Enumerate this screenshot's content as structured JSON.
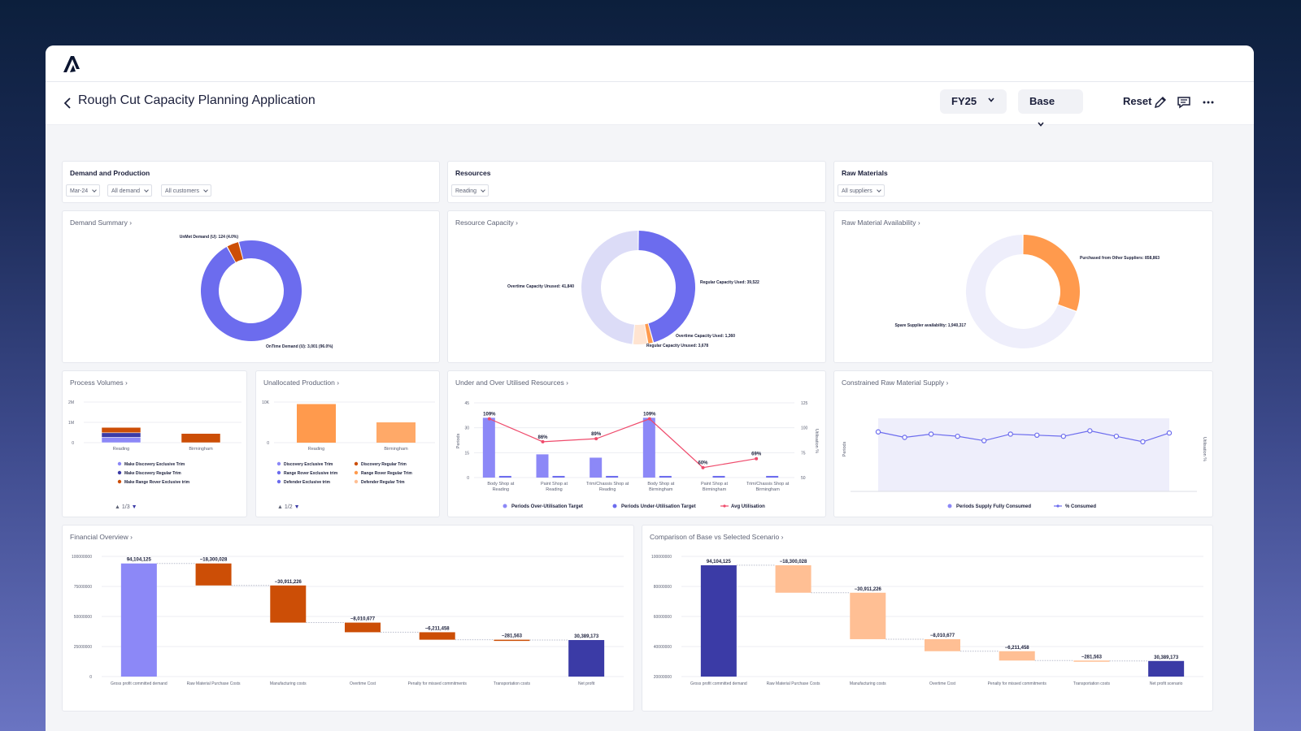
{
  "header": {
    "title": "Rough Cut Capacity Planning Application",
    "fy_label": "FY25",
    "scenario_label": "Base",
    "reset_label": "Reset",
    "icons": [
      "chevron-left-icon",
      "pencil-icon",
      "comment-icon",
      "more-horizontal-icon"
    ]
  },
  "filters": {
    "demand": {
      "title": "Demand and Production",
      "chips": [
        "Mar-24",
        "All demand",
        "All customers"
      ]
    },
    "resources": {
      "title": "Resources",
      "chips": [
        "Reading"
      ]
    },
    "raw": {
      "title": "Raw Materials",
      "chips": [
        "All suppliers"
      ]
    }
  },
  "demand_summary": {
    "title": "Demand Summary"
  },
  "resource_capacity": {
    "title": "Resource Capacity"
  },
  "raw_availability": {
    "title": "Raw Material Availability"
  },
  "process_volumes": {
    "title": "Process Volumes",
    "pager": "1/3"
  },
  "unallocated": {
    "title": "Unallocated Production",
    "pager": "1/2"
  },
  "utilised": {
    "title": "Under and Over Utilised Resources"
  },
  "constrained": {
    "title": "Constrained Raw Material Supply"
  },
  "financial": {
    "title": "Financial Overview"
  },
  "comparison": {
    "title": "Comparison of Base vs Selected Scenario"
  },
  "colors": {
    "violet": "#6c6cee",
    "light_violet": "#8c88f7",
    "lavender": "#dcdcf7",
    "navy": "#3b3ba6",
    "orange": "#ff9a4d",
    "dark_orange": "#cc4e06",
    "peach": "#ffbf94",
    "red": "#ef4b6c"
  },
  "chart_data": [
    {
      "type": "pie",
      "id": "demand_summary",
      "labels": [
        "UnMet Demand (U): 124 (4.0%)",
        "OnTime Demand (U): 3,001 (96.0%)"
      ],
      "values": [
        124,
        3001
      ],
      "colors": [
        "#cc4e06",
        "#6c6cee"
      ]
    },
    {
      "type": "pie",
      "id": "resource_capacity",
      "labels": [
        "Regular Capacity Used: 39,522",
        "Overtime Capacity Used: 1,360",
        "Regular Capacity Unused: 3,678",
        "Overtime Capacity Unused: 41,840"
      ],
      "values": [
        39522,
        1360,
        3678,
        41840
      ],
      "colors": [
        "#6c6cee",
        "#ff9a4d",
        "#ffe4d1",
        "#dcdcf7"
      ]
    },
    {
      "type": "pie",
      "id": "raw_availability",
      "labels": [
        "Purchased from Other Suppliers: 858,863",
        "Spare Supplier availability: 1,940,317"
      ],
      "values": [
        858863,
        1940317
      ],
      "colors": [
        "#ff9a4d",
        "#eeeefb"
      ]
    },
    {
      "type": "bar",
      "id": "process_volumes",
      "categories": [
        "Reading",
        "Birmingham"
      ],
      "yticks": [
        "2M",
        "1M",
        "0"
      ],
      "series": [
        {
          "name": "Make Discovery Exclusive Trim",
          "values": [
            0.35,
            0
          ],
          "color": "#8c88f7"
        },
        {
          "name": "Make Discovery Regular Trim",
          "values": [
            0.3,
            0
          ],
          "color": "#3b3ba6"
        },
        {
          "name": "Make Range Rover Exclusive trim",
          "values": [
            0.35,
            0.6
          ],
          "color": "#cc4e06"
        }
      ]
    },
    {
      "type": "bar",
      "id": "unallocated",
      "categories": [
        "Reading",
        "Birmingham"
      ],
      "yticks": [
        "10K",
        "0"
      ],
      "values": [
        9500,
        5000
      ],
      "legend": [
        "Discovery Exclusive Trim",
        "Discovery Regular Trim",
        "Range Rover Exclusive trim",
        "Range Rover Regular Trim",
        "Defender Exclusive trim",
        "Defender Regular Trim"
      ],
      "legend_colors": [
        "#8c88f7",
        "#cc4e06",
        "#6c6cee",
        "#ff9a4d",
        "#6c6cee",
        "#ffbf94"
      ]
    },
    {
      "type": "bar",
      "id": "utilised",
      "categories": [
        "Body Shop at Reading",
        "Paint Shop at Reading",
        "Trim/Chassis Shop at Reading",
        "Body Shop at Birmingham",
        "Paint Shop at Birmingham",
        "Trim/Chassis Shop at Birmingham"
      ],
      "ylabel": "Periods",
      "y2label": "Utilisation %",
      "yticks": [
        "45",
        "30",
        "15",
        "0"
      ],
      "y2ticks": [
        "125",
        "100",
        "75",
        "50"
      ],
      "series": [
        {
          "name": "Periods Over-Utilisation Target",
          "values": [
            36,
            14,
            12,
            36,
            0,
            0
          ],
          "color": "#8c88f7"
        },
        {
          "name": "Periods Under-Utilisation Target",
          "values": [
            1,
            1,
            1,
            1,
            1,
            1
          ],
          "color": "#6c6cee"
        },
        {
          "name": "Avg Utilisation",
          "values": [
            109,
            86,
            89,
            109,
            60,
            69
          ],
          "color": "#ef4b6c"
        }
      ],
      "point_labels": [
        "109%",
        "86%",
        "89%",
        "109%",
        "60%",
        "69%"
      ]
    },
    {
      "type": "line",
      "id": "constrained",
      "ylabel": "Periods",
      "y2label": "Utilisation %",
      "series": [
        {
          "name": "Periods Supply Fully Consumed",
          "values": [],
          "color": "#8c88f7"
        },
        {
          "name": "% Consumed",
          "values": [
            105,
            100,
            103,
            101,
            97,
            103,
            102,
            101,
            106,
            101,
            96,
            104
          ],
          "color": "#6c6cee"
        }
      ]
    },
    {
      "type": "bar",
      "id": "financial",
      "categories": [
        "Gross profit committed demand",
        "Raw Material Purchase Costs",
        "Manufacturing costs",
        "Overtime Cost",
        "Penalty for missed commitments",
        "Transportation costs",
        "Net profit"
      ],
      "values": [
        94104125,
        -18300028,
        -30911226,
        -8010677,
        -6211458,
        -281563,
        30389173
      ],
      "value_labels": [
        "94,104,125",
        "−18,300,028",
        "−30,911,226",
        "−8,010,677",
        "−6,211,458",
        "−281,563",
        "30,389,173"
      ],
      "yticks": [
        "100000000",
        "75000000",
        "50000000",
        "25000000",
        "0"
      ],
      "ylim": [
        0,
        100000000
      ]
    },
    {
      "type": "bar",
      "id": "comparison",
      "categories": [
        "Gross profit committed demand",
        "Raw Material Purchase Costs",
        "Manufacturing costs",
        "Overtime Cost",
        "Penalty for missed commitments",
        "Transportation costs",
        "Net profit scenario"
      ],
      "values": [
        94104125,
        -18300028,
        -30911226,
        -8010677,
        -6211458,
        -281563,
        30389173
      ],
      "value_labels": [
        "94,104,125",
        "−18,300,028",
        "−30,911,226",
        "−8,010,677",
        "−6,211,458",
        "−281,563",
        "30,389,173"
      ],
      "yticks": [
        "100000000",
        "80000000",
        "60000000",
        "40000000",
        "20000000"
      ],
      "ylim": [
        20000000,
        100000000
      ]
    }
  ]
}
